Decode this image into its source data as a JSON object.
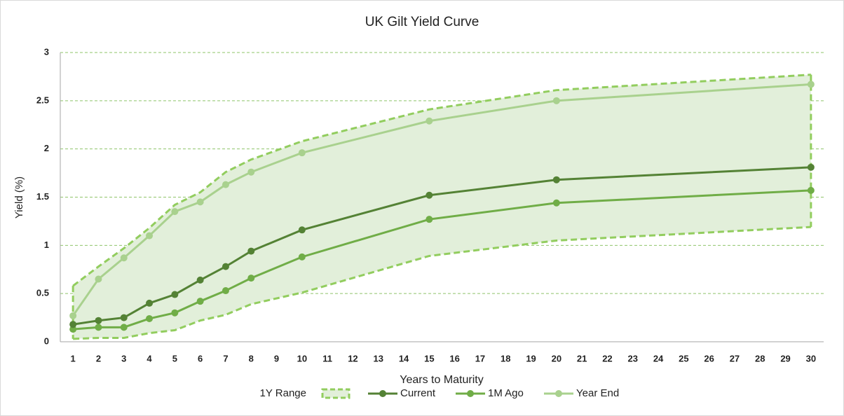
{
  "chart_data": {
    "type": "line",
    "title": "UK Gilt Yield Curve",
    "x_label": "Years to Maturity",
    "y_label": "Yield (%)",
    "x": [
      1,
      2,
      3,
      4,
      5,
      6,
      7,
      8,
      10,
      15,
      20,
      30
    ],
    "range": {
      "name": "1Y Range",
      "color": "#92cd5e",
      "fill": "#e2efda",
      "high": [
        0.58,
        0.78,
        0.97,
        1.18,
        1.42,
        1.55,
        1.76,
        1.89,
        2.08,
        2.41,
        2.61,
        2.77
      ],
      "low": [
        0.03,
        0.04,
        0.04,
        0.09,
        0.12,
        0.22,
        0.28,
        0.39,
        0.51,
        0.89,
        1.05,
        1.19
      ]
    },
    "series": [
      {
        "name": "Current",
        "color": "#548235",
        "values": [
          0.18,
          0.22,
          0.25,
          0.4,
          0.49,
          0.64,
          0.78,
          0.94,
          1.16,
          1.52,
          1.68,
          1.81
        ]
      },
      {
        "name": "1M Ago",
        "color": "#70ad47",
        "values": [
          0.13,
          0.15,
          0.15,
          0.24,
          0.3,
          0.42,
          0.53,
          0.66,
          0.88,
          1.27,
          1.44,
          1.57
        ]
      },
      {
        "name": "Year End",
        "color": "#a9d18e",
        "values": [
          0.27,
          0.65,
          0.87,
          1.1,
          1.35,
          1.45,
          1.63,
          1.76,
          1.96,
          2.29,
          2.5,
          2.67
        ]
      }
    ],
    "xlim": [
      0.5,
      30.5
    ],
    "xticks": [
      1,
      2,
      3,
      4,
      5,
      6,
      7,
      8,
      9,
      10,
      11,
      12,
      13,
      14,
      15,
      16,
      17,
      18,
      19,
      20,
      21,
      22,
      23,
      24,
      25,
      26,
      27,
      28,
      29,
      30
    ],
    "ylim": [
      0,
      3
    ],
    "yticks": [
      0,
      0.5,
      1,
      1.5,
      2,
      2.5,
      3
    ],
    "grid": true
  }
}
